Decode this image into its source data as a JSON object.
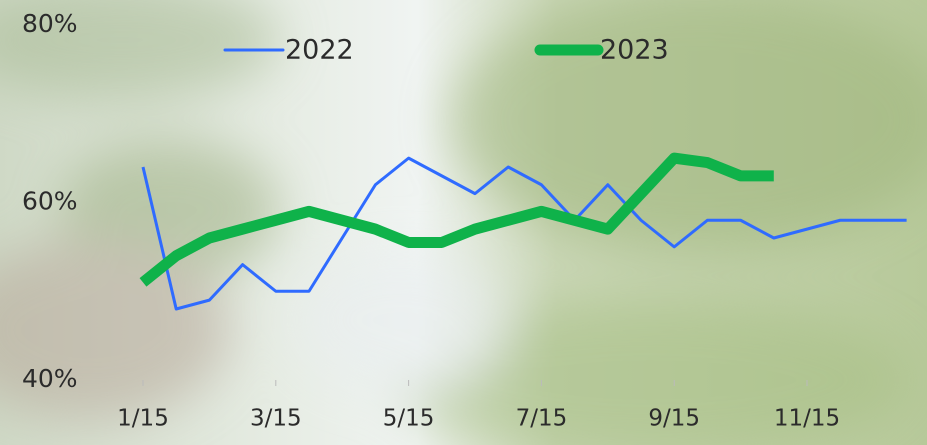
{
  "chart_data": {
    "type": "line",
    "categories": [
      "1/15",
      null,
      null,
      null,
      "3/15",
      null,
      null,
      null,
      "5/15",
      null,
      null,
      null,
      "7/15",
      null,
      null,
      null,
      "9/15",
      null,
      null,
      null,
      "11/15",
      null,
      null,
      null
    ],
    "series": [
      {
        "name": "2022",
        "color": "#2f6bff",
        "width": 3,
        "values": [
          64,
          48,
          49,
          53,
          50,
          50,
          56,
          62,
          65,
          63,
          61,
          64,
          62,
          58,
          62,
          58,
          55,
          58,
          58,
          56,
          57,
          58,
          58,
          58
        ]
      },
      {
        "name": "2023",
        "color": "#0fb24a",
        "width": 11,
        "values": [
          51,
          54,
          56,
          57,
          58,
          59,
          58,
          57,
          55.5,
          55.5,
          57,
          58,
          59,
          58,
          57,
          61,
          65,
          64.5,
          63,
          63,
          null,
          null,
          null,
          null
        ]
      }
    ],
    "ylim": [
      40,
      80
    ],
    "yticks": [
      {
        "value": 40,
        "label": "40%"
      },
      {
        "value": 60,
        "label": "60%"
      },
      {
        "value": 80,
        "label": "80%"
      }
    ],
    "grid": false
  }
}
